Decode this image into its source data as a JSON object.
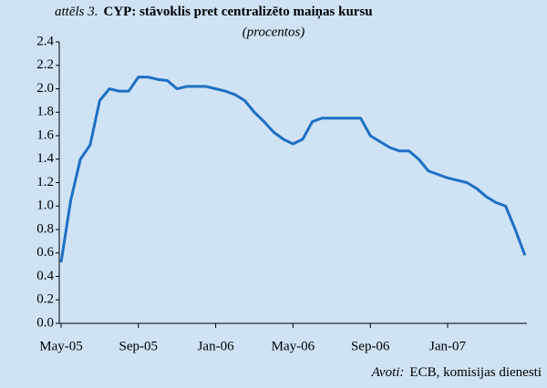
{
  "chart_data": {
    "type": "line",
    "title_prefix": "attēls 3.",
    "title": "CYP: stāvoklis pret centralizēto maiņas kursu",
    "subtitle": "(procentos)",
    "source_label": "Avoti:",
    "source": "ECB, komisijas dienesti",
    "categories": [
      "May-05",
      null,
      null,
      null,
      null,
      null,
      null,
      null,
      "Sep-05",
      null,
      null,
      null,
      null,
      null,
      null,
      null,
      "Jan-06",
      null,
      null,
      null,
      null,
      null,
      null,
      null,
      "May-06",
      null,
      null,
      null,
      null,
      null,
      null,
      null,
      "Sep-06",
      null,
      null,
      null,
      null,
      null,
      null,
      null,
      "Jan-07",
      null,
      null,
      null,
      null,
      null,
      null,
      null,
      null
    ],
    "series": [
      {
        "name": "CYP",
        "color": "#1f6fc5",
        "values": [
          0.52,
          1.05,
          1.4,
          1.52,
          1.9,
          2.0,
          1.98,
          1.98,
          2.1,
          2.1,
          2.08,
          2.07,
          2.0,
          2.02,
          2.02,
          2.02,
          2.0,
          1.98,
          1.95,
          1.9,
          1.8,
          1.72,
          1.63,
          1.57,
          1.53,
          1.57,
          1.72,
          1.75,
          1.75,
          1.75,
          1.75,
          1.75,
          1.6,
          1.55,
          1.5,
          1.47,
          1.47,
          1.4,
          1.3,
          1.27,
          1.24,
          1.22,
          1.2,
          1.15,
          1.08,
          1.03,
          1.0,
          0.8,
          0.58
        ]
      }
    ],
    "ylim": [
      0,
      2.4
    ],
    "yticks": [
      {
        "value": 0,
        "label": "0.0"
      },
      0.2,
      0.4,
      0.6,
      0.8,
      {
        "value": 1,
        "label": "1.0"
      },
      1.2,
      1.4,
      1.6,
      1.8,
      {
        "value": 2,
        "label": "2.0"
      },
      2.2,
      2.4
    ],
    "grid": false
  }
}
